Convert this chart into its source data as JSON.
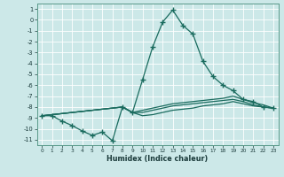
{
  "xlabel": "Humidex (Indice chaleur)",
  "background_color": "#cce8e8",
  "grid_color": "#ffffff",
  "line_color": "#1a6b5e",
  "xlim": [
    -0.5,
    23.5
  ],
  "ylim": [
    -11.5,
    1.5
  ],
  "xticks": [
    0,
    1,
    2,
    3,
    4,
    5,
    6,
    7,
    8,
    9,
    10,
    11,
    12,
    13,
    14,
    15,
    16,
    17,
    18,
    19,
    20,
    21,
    22,
    23
  ],
  "yticks": [
    1,
    0,
    -1,
    -2,
    -3,
    -4,
    -5,
    -6,
    -7,
    -8,
    -9,
    -10,
    -11
  ],
  "line_peak_x": [
    0,
    1,
    2,
    3,
    4,
    5,
    6,
    7,
    8,
    9,
    10,
    11,
    12,
    13,
    14,
    15,
    16,
    17,
    18,
    19,
    20,
    21,
    22,
    23
  ],
  "line_peak_y": [
    -8.8,
    -8.8,
    -9.3,
    -9.7,
    -10.2,
    -10.6,
    -10.3,
    -11.1,
    -8.0,
    -8.5,
    -5.5,
    -2.5,
    -0.2,
    0.9,
    -0.5,
    -1.3,
    -3.8,
    -5.2,
    -6.0,
    -6.5,
    -7.3,
    -7.5,
    -8.0,
    -8.1
  ],
  "line_flat1_x": [
    0,
    8,
    9,
    10,
    11,
    12,
    13,
    14,
    15,
    16,
    17,
    18,
    19,
    20,
    21,
    22,
    23
  ],
  "line_flat1_y": [
    -8.8,
    -8.0,
    -8.5,
    -8.5,
    -8.3,
    -8.1,
    -7.9,
    -7.8,
    -7.7,
    -7.6,
    -7.5,
    -7.4,
    -7.3,
    -7.5,
    -7.8,
    -8.0,
    -8.1
  ],
  "line_flat2_x": [
    0,
    8,
    9,
    10,
    11,
    12,
    13,
    14,
    15,
    16,
    17,
    18,
    19,
    20,
    21,
    22,
    23
  ],
  "line_flat2_y": [
    -8.8,
    -8.0,
    -8.5,
    -8.3,
    -8.1,
    -7.9,
    -7.7,
    -7.6,
    -7.5,
    -7.4,
    -7.3,
    -7.2,
    -7.0,
    -7.3,
    -7.6,
    -7.8,
    -8.1
  ],
  "line_flat3_x": [
    0,
    8,
    9,
    10,
    11,
    12,
    13,
    14,
    15,
    16,
    17,
    18,
    19,
    20,
    21,
    22,
    23
  ],
  "line_flat3_y": [
    -8.8,
    -8.0,
    -8.5,
    -8.8,
    -8.7,
    -8.5,
    -8.3,
    -8.2,
    -8.1,
    -7.9,
    -7.8,
    -7.7,
    -7.5,
    -7.7,
    -7.9,
    -8.0,
    -8.1
  ]
}
